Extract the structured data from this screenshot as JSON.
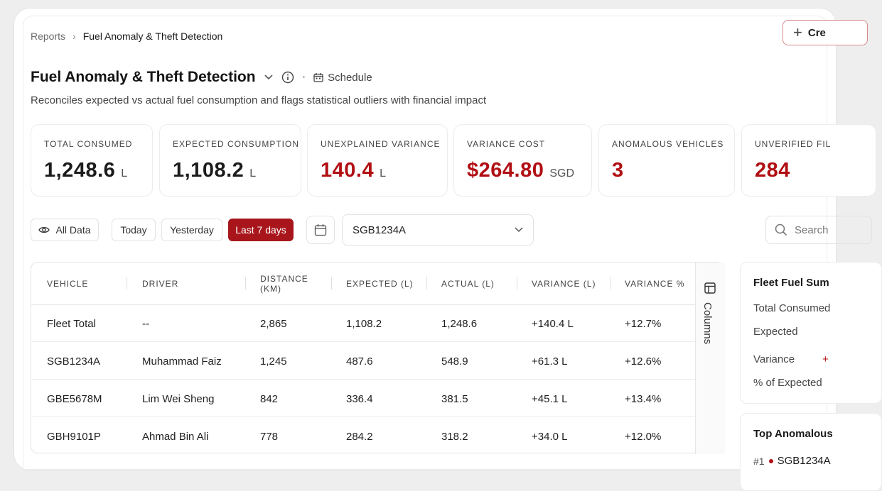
{
  "breadcrumb": {
    "parent": "Reports",
    "separator": "›",
    "current": "Fuel Anomaly & Theft Detection"
  },
  "header": {
    "create_label": "Cre",
    "title": "Fuel Anomaly & Theft Detection",
    "schedule_label": "Schedule",
    "subtitle": "Reconciles expected vs actual fuel consumption and flags statistical outliers with financial impact"
  },
  "kpis": [
    {
      "label": "TOTAL CONSUMED",
      "value": "1,248.6",
      "unit": "L",
      "color": "#1c1c1c"
    },
    {
      "label": "EXPECTED CONSUMPTION",
      "value": "1,108.2",
      "unit": "L",
      "color": "#1c1c1c"
    },
    {
      "label": "UNEXPLAINED VARIANCE",
      "value": "140.4",
      "unit": "L",
      "color": "#b10f14"
    },
    {
      "label": "VARIANCE COST",
      "value": "$264.80",
      "unit": "SGD",
      "color": "#b10f14"
    },
    {
      "label": "ANOMALOUS VEHICLES",
      "value": "3",
      "unit": "",
      "color": "#b10f14"
    },
    {
      "label": "UNVERIFIED FIL",
      "value": "284",
      "unit": "",
      "color": "#b10f14"
    }
  ],
  "filters": {
    "all_data": "All Data",
    "today": "Today",
    "yesterday": "Yesterday",
    "last7": "Last 7 days",
    "vehicle": "SGB1234A",
    "search_placeholder": "Search"
  },
  "table": {
    "columns": [
      "VEHICLE",
      "DRIVER",
      "DISTANCE (KM)",
      "EXPECTED (L)",
      "ACTUAL (L)",
      "VARIANCE (L)",
      "VARIANCE %"
    ],
    "rows": [
      [
        "Fleet Total",
        "--",
        "2,865",
        "1,108.2",
        "1,248.6",
        "+140.4 L",
        "+12.7%"
      ],
      [
        "SGB1234A",
        "Muhammad Faiz",
        "1,245",
        "487.6",
        "548.9",
        "+61.3 L",
        "+12.6%"
      ],
      [
        "GBE5678M",
        "Lim Wei Sheng",
        "842",
        "336.4",
        "381.5",
        "+45.1 L",
        "+13.4%"
      ],
      [
        "GBH9101P",
        "Ahmad Bin Ali",
        "778",
        "284.2",
        "318.2",
        "+34.0 L",
        "+12.0%"
      ]
    ],
    "columns_toggle": "Columns"
  },
  "summary": {
    "title": "Fleet Fuel Sum",
    "total_consumed": "Total Consumed",
    "expected": "Expected",
    "variance": "Variance",
    "variance_value": "+",
    "pct_expected": "% of Expected"
  },
  "top_anomalous": {
    "title": "Top Anomalous",
    "rank": "#1",
    "vehicle": "SGB1234A"
  },
  "colors": {
    "accent": "#a8161b",
    "danger_text": "#b10f14"
  }
}
